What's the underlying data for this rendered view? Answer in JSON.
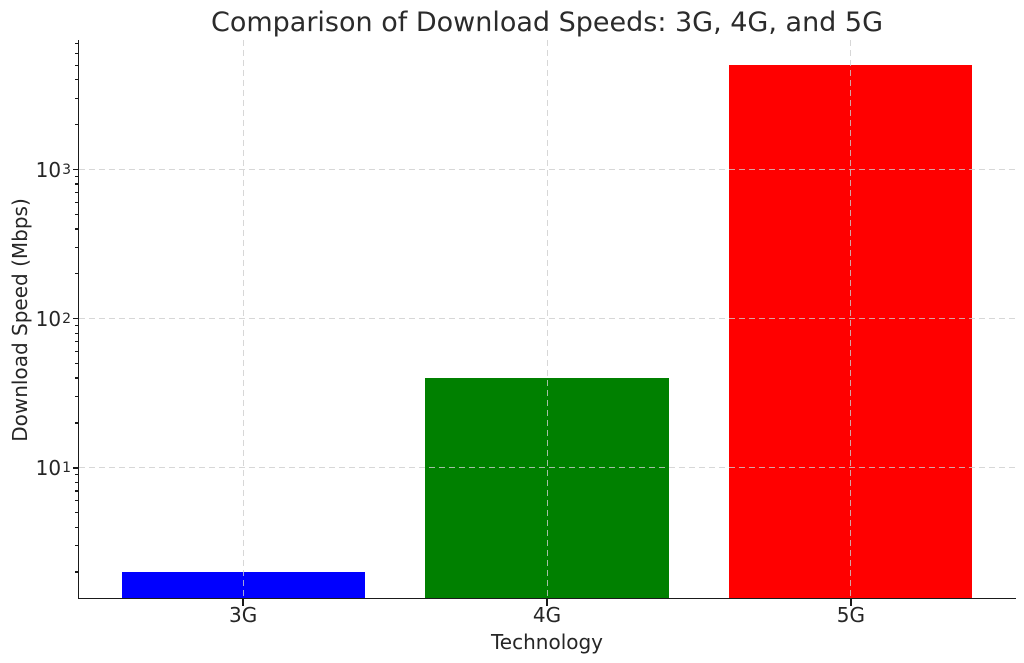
{
  "chart_data": {
    "type": "bar",
    "title": "Comparison of Download Speeds: 3G, 4G, and 5G",
    "xlabel": "Technology",
    "ylabel": "Download Speed (Mbps)",
    "categories": [
      "3G",
      "4G",
      "5G"
    ],
    "values": [
      2,
      40,
      5000
    ],
    "bar_colors": [
      "#0000ff",
      "#008000",
      "#ff0000"
    ],
    "yscale": "log",
    "ylim": [
      1.35,
      7400
    ],
    "xlim": [
      -0.54,
      2.54
    ],
    "bar_width": 0.8,
    "ytick_exponents": [
      1,
      2,
      3
    ],
    "minor_tick_subs": [
      2,
      3,
      4,
      5,
      6,
      7,
      8,
      9
    ],
    "grid": {
      "visible": true,
      "which": "major",
      "linestyle": "dashed",
      "color": "#d3d3d3",
      "drawn_above_bars": true
    },
    "legend": null,
    "colors": {
      "text": "#262626",
      "spine": "#1a1a1a",
      "background": "#ffffff"
    }
  }
}
